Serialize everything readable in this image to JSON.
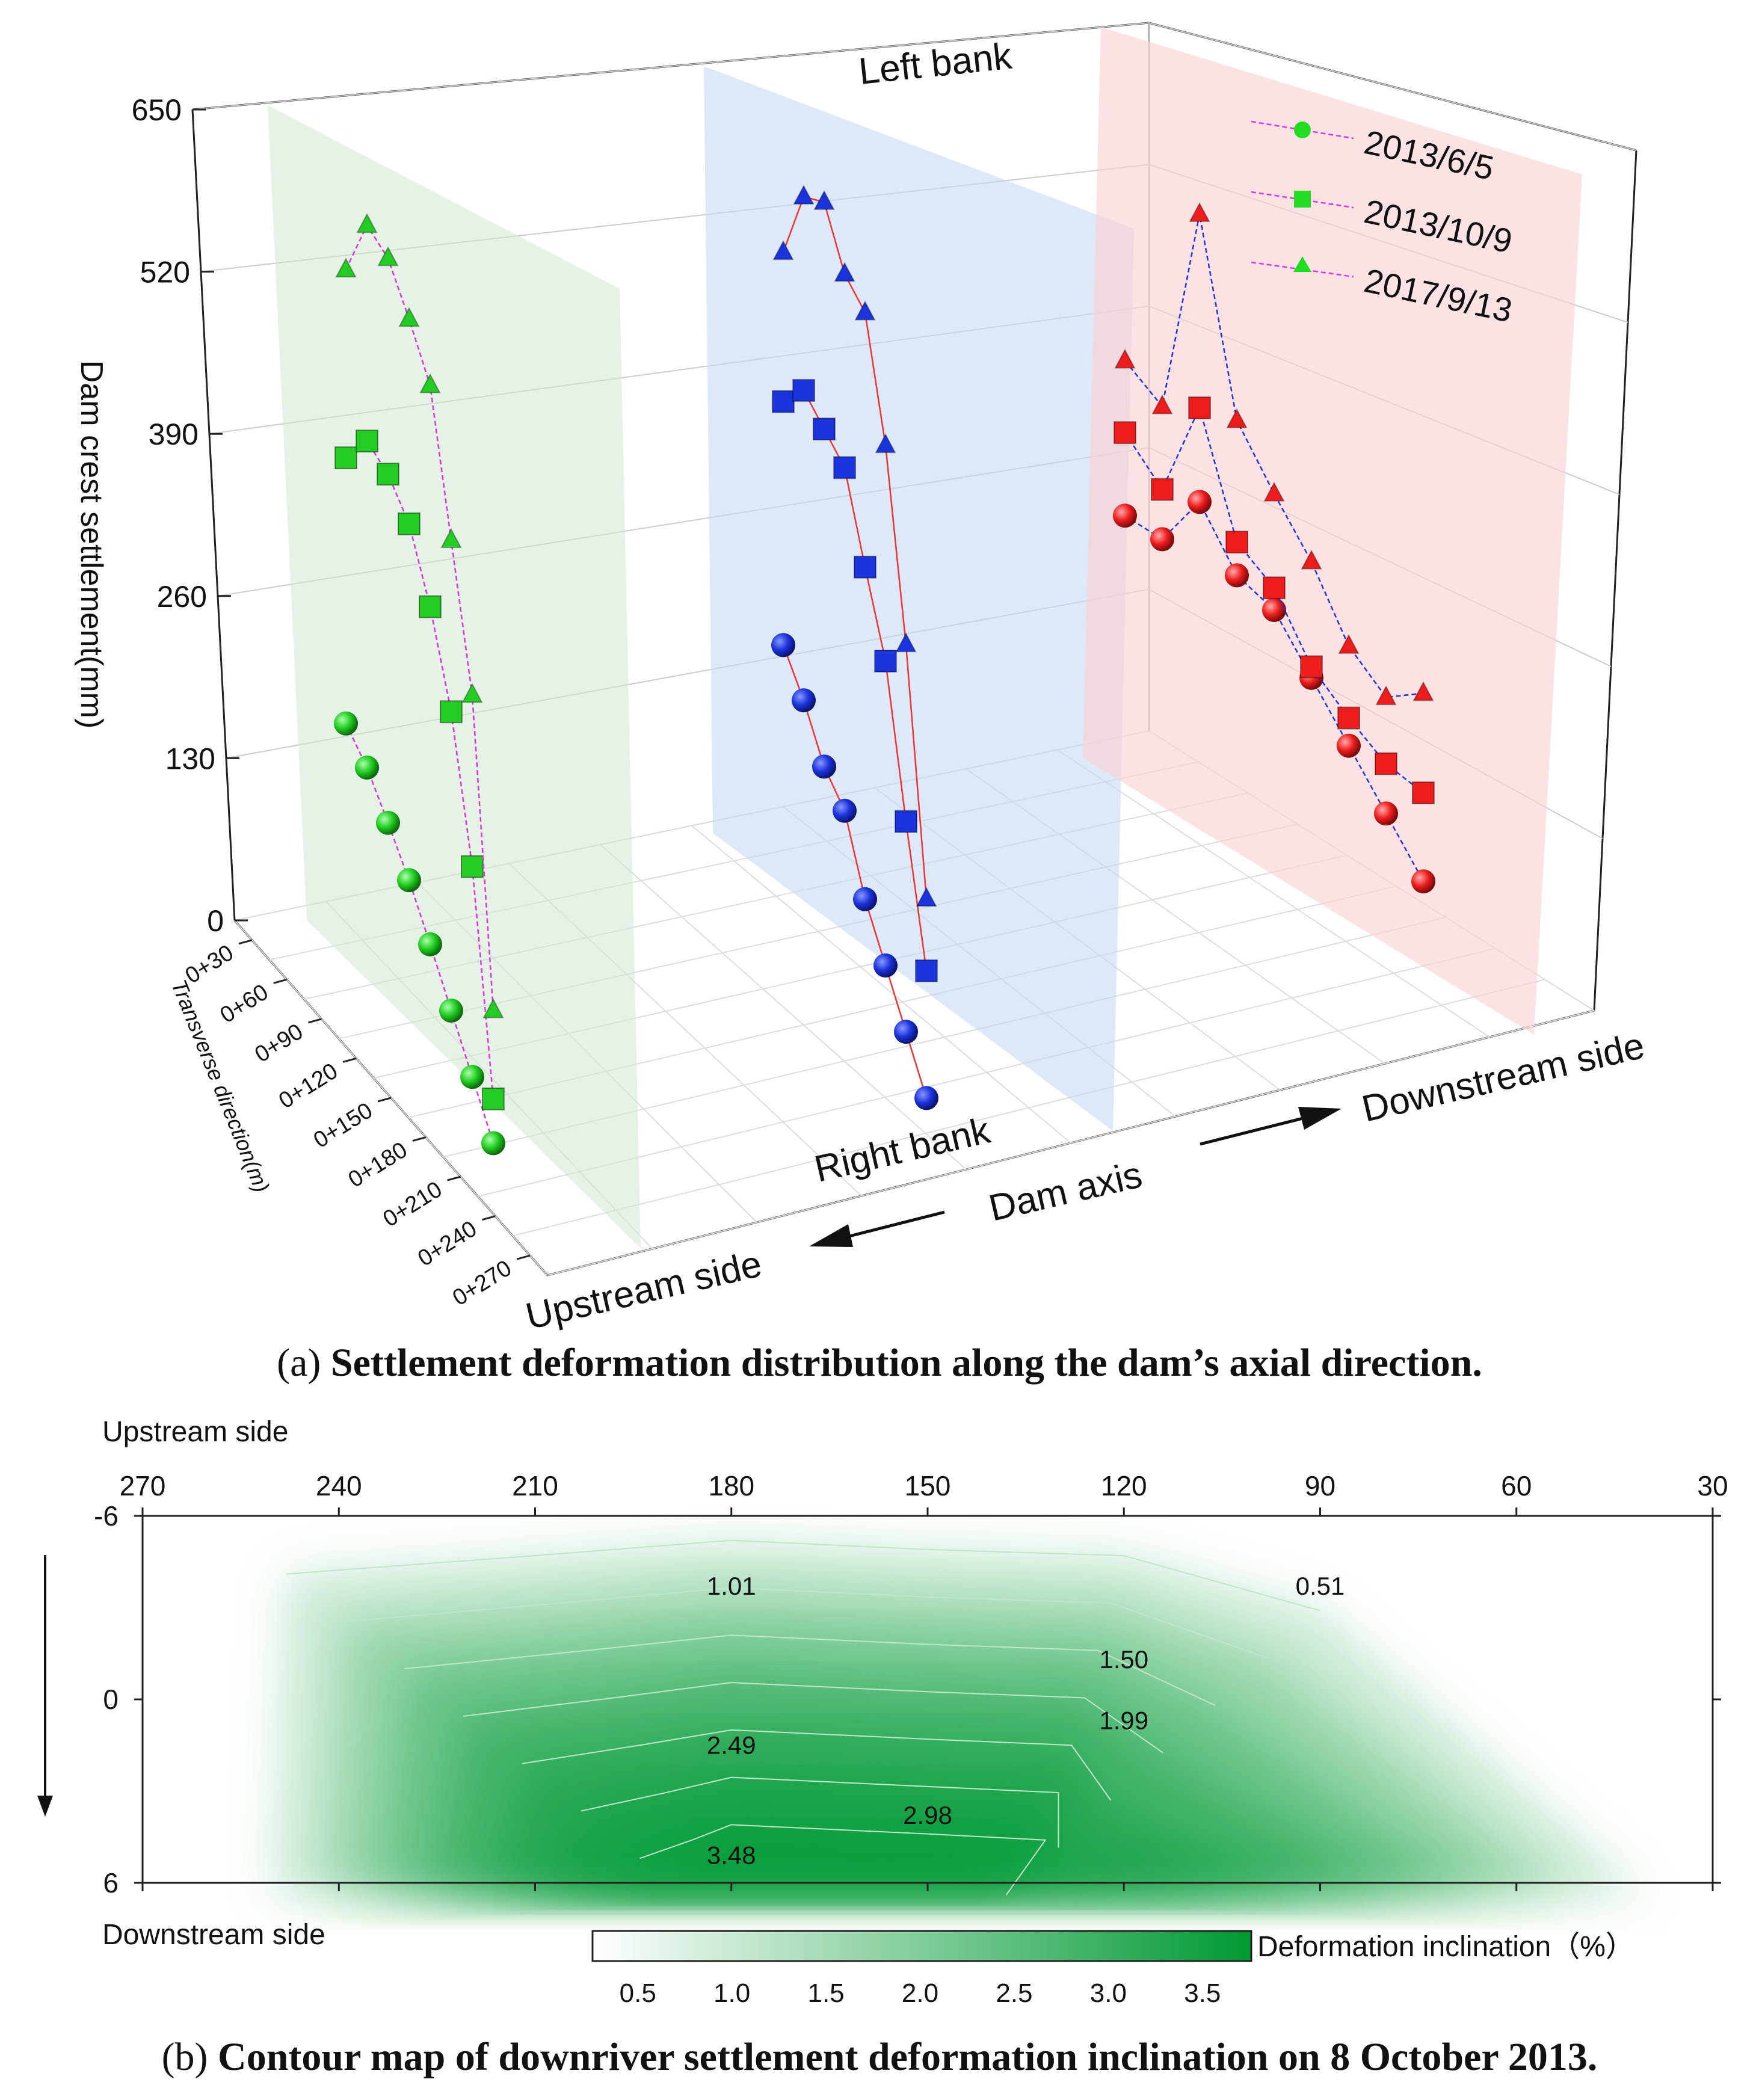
{
  "chart_data": [
    {
      "type": "scatter-3d",
      "title": "Settlement deformation distribution along the dam’s axial direction.",
      "caption_label": "(a)",
      "zlabel": "Dam crest settlement(mm)",
      "ylabel": "Transverse direction(m)",
      "axis_text": {
        "left_bank": "Left bank",
        "right_bank": "Right bank",
        "dam_axis": "Dam axis",
        "upstream": "Upstream side",
        "downstream": "Downstream side"
      },
      "z_ticks": [
        "0",
        "130",
        "260",
        "390",
        "520",
        "650"
      ],
      "zlim": [
        0,
        650
      ],
      "transverse_ticks": [
        "0+30",
        "0+60",
        "0+90",
        "0+120",
        "0+150",
        "0+180",
        "0+210",
        "0+240",
        "0+270"
      ],
      "legend": [
        {
          "label": "2013/6/5",
          "marker": "sphere"
        },
        {
          "label": "2013/10/9",
          "marker": "cube"
        },
        {
          "label": "2017/9/13",
          "marker": "cone"
        }
      ],
      "planes": [
        {
          "name": "upstream-section",
          "color": "#22cc22",
          "line_color": "#dd33dd",
          "series": [
            {
              "date": "2013/6/5",
              "values": [
                110,
                100,
                80,
                58,
                30,
                0,
                -30,
                -60
              ]
            },
            {
              "date": "2013/10/9",
              "values": [
                350,
                395,
                395,
                380,
                335,
                270,
                160,
                -20
              ]
            },
            {
              "date": "2017/9/13",
              "values": [
                520,
                590,
                590,
                565,
                535,
                425,
                315,
                60
              ]
            }
          ]
        },
        {
          "name": "axis-section",
          "color": "#1a33dd",
          "line_color": "#ee3333",
          "series": [
            {
              "date": "2013/6/5",
              "values": [
                140,
                120,
                90,
                80,
                30,
                0,
                -30,
                -60
              ]
            },
            {
              "date": "2013/10/9",
              "values": [
                360,
                400,
                395,
                390,
                330,
                275,
                160,
                55
              ]
            },
            {
              "date": "2017/9/13",
              "values": [
                495,
                575,
                600,
                565,
                560,
                470,
                320,
                120
              ]
            }
          ]
        },
        {
          "name": "downstream-section",
          "color": "#ee1c1c",
          "line_color": "#2233dd",
          "series": [
            {
              "date": "2013/6/5",
              "values": [
                170,
                165,
                215,
                165,
                150,
                105,
                60,
                15,
                -30
              ]
            },
            {
              "date": "2013/10/9",
              "values": [
                245,
                210,
                300,
                195,
                170,
                115,
                85,
                60,
                50
              ]
            },
            {
              "date": "2017/9/13",
              "values": [
                310,
                285,
                475,
                305,
                255,
                210,
                150,
                120,
                140
              ]
            }
          ]
        }
      ]
    },
    {
      "type": "heatmap",
      "title": "Contour map of downriver settlement deformation inclination on 8 October 2013.",
      "caption_label": "(b)",
      "x_ticks": [
        "270",
        "240",
        "210",
        "180",
        "150",
        "120",
        "90",
        "60",
        "30"
      ],
      "y_ticks": [
        "-6",
        "0",
        "6"
      ],
      "ylim": [
        -6,
        6
      ],
      "upstream_label": "Upstream side",
      "downstream_label": "Downstream side",
      "colorbar": {
        "label": "Deformation inclination（%）",
        "ticks": [
          "0.5",
          "1.0",
          "1.5",
          "2.0",
          "2.5",
          "3.0",
          "3.5"
        ],
        "range": [
          0.25,
          3.75
        ],
        "color_low": "#ffffff",
        "color_high": "#009933"
      },
      "contours": [
        {
          "level": "0.51",
          "label": "0.51",
          "label_x": 90,
          "label_y": -3.7
        },
        {
          "level": "1.01",
          "label": "1.01",
          "label_x": 180,
          "label_y": -3.7
        },
        {
          "level": "1.50",
          "label": "1.50",
          "label_x": 120,
          "label_y": -1.3
        },
        {
          "level": "1.99",
          "label": "1.99",
          "label_x": 120,
          "label_y": 0.7
        },
        {
          "level": "2.49",
          "label": "2.49",
          "label_x": 180,
          "label_y": 1.5
        },
        {
          "level": "2.98",
          "label": "2.98",
          "label_x": 150,
          "label_y": 3.8
        },
        {
          "level": "3.48",
          "label": "3.48",
          "label_x": 180,
          "label_y": 5.1
        }
      ]
    }
  ],
  "captions": {
    "a": "Settlement deformation distribution along the dam’s axial direction.",
    "b": "Contour map of downriver settlement deformation inclination on 8 October 2013."
  }
}
